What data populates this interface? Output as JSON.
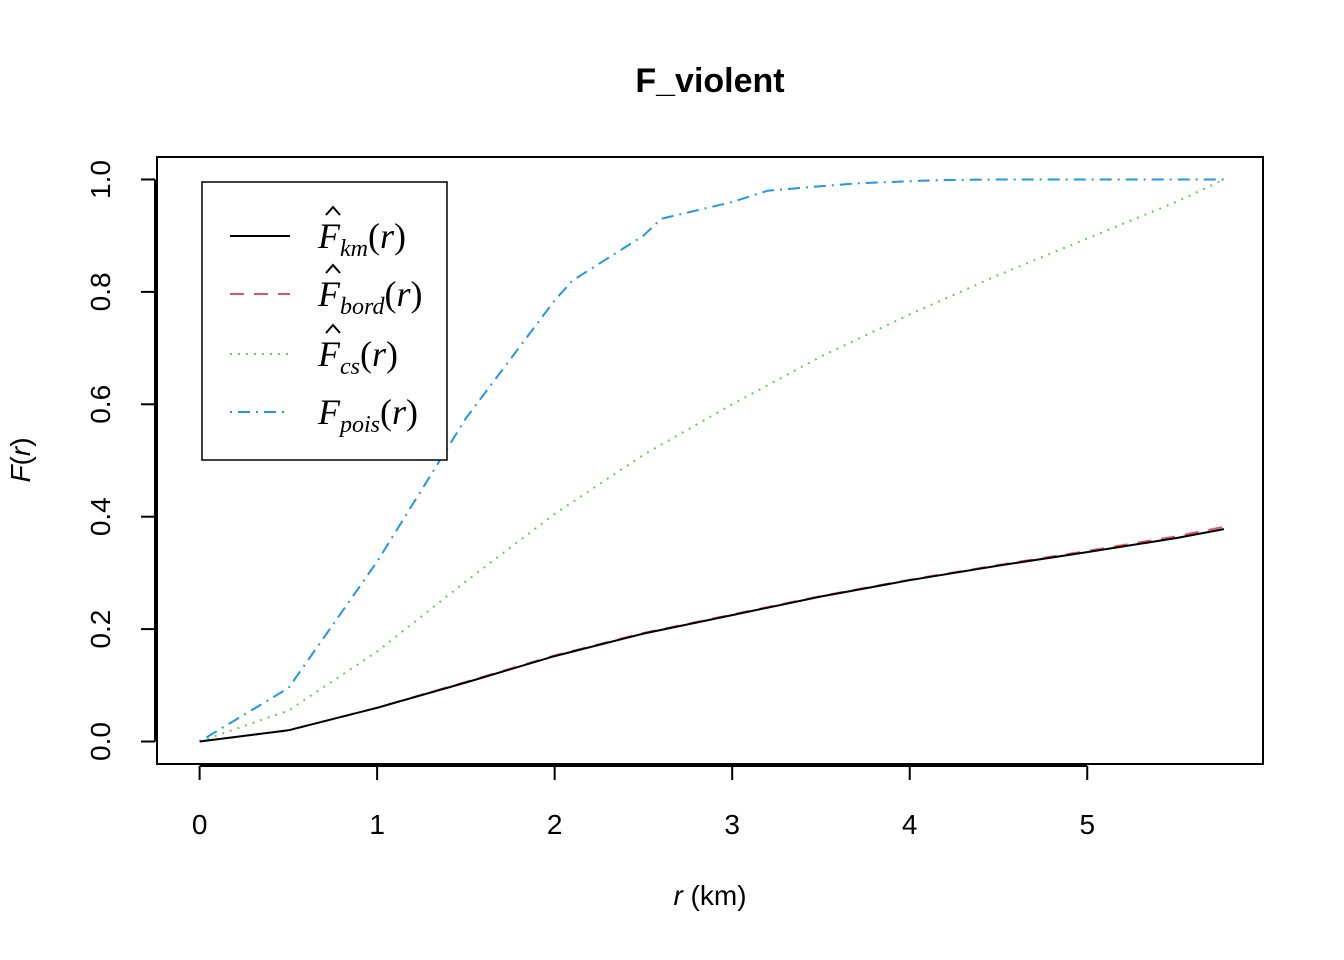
{
  "chart_data": {
    "type": "line",
    "title": "F_violent",
    "xlabel": {
      "var": "r",
      "unit": " (km)"
    },
    "ylabel": {
      "fn": "F",
      "open": "(",
      "var": "r",
      "close": ")"
    },
    "xlim": [
      -0.24,
      5.99
    ],
    "ylim": [
      -0.04,
      1.04
    ],
    "xticks": [
      0,
      1,
      2,
      3,
      4,
      5
    ],
    "xtick_labels": [
      "0",
      "1",
      "2",
      "3",
      "4",
      "5"
    ],
    "yticks": [
      0.0,
      0.2,
      0.4,
      0.6,
      0.8,
      1.0
    ],
    "ytick_labels": [
      "0.0",
      "0.2",
      "0.4",
      "0.6",
      "0.8",
      "1.0"
    ],
    "grid": false,
    "legend_position": "top-left",
    "series": [
      {
        "key": "km",
        "name": "F̂_km(r)",
        "legend": {
          "base": "F",
          "hat": true,
          "sub": "km",
          "open": "(",
          "var": "r",
          "close": ")"
        },
        "color": "#000000",
        "dash": "none",
        "x": [
          0,
          0.5,
          1.0,
          1.5,
          2.0,
          2.5,
          3.0,
          3.5,
          4.0,
          4.5,
          5.0,
          5.5,
          5.77
        ],
        "y": [
          0,
          0.02,
          0.06,
          0.105,
          0.152,
          0.192,
          0.225,
          0.258,
          0.287,
          0.313,
          0.337,
          0.362,
          0.378
        ]
      },
      {
        "key": "bord",
        "name": "F̂_bord(r)",
        "legend": {
          "base": "F",
          "hat": true,
          "sub": "bord",
          "open": "(",
          "var": "r",
          "close": ")"
        },
        "color": "#DF536B",
        "dash": "14,10",
        "x": [
          0,
          0.5,
          1.0,
          1.5,
          2.0,
          2.5,
          3.0,
          3.5,
          4.0,
          4.5,
          5.0,
          5.5,
          5.77
        ],
        "y": [
          0,
          0.02,
          0.06,
          0.106,
          0.153,
          0.193,
          0.226,
          0.259,
          0.288,
          0.314,
          0.339,
          0.365,
          0.382
        ]
      },
      {
        "key": "cs",
        "name": "F̂_cs(r)",
        "legend": {
          "base": "F",
          "hat": true,
          "sub": "cs",
          "open": "(",
          "var": "r",
          "close": ")"
        },
        "color": "#61D04F",
        "dash": "2,6",
        "x": [
          0,
          0.5,
          1.0,
          1.5,
          2.0,
          2.5,
          3.0,
          3.5,
          4.0,
          4.5,
          5.0,
          5.5,
          5.77
        ],
        "y": [
          0,
          0.055,
          0.16,
          0.285,
          0.405,
          0.51,
          0.6,
          0.685,
          0.76,
          0.83,
          0.895,
          0.96,
          1.0
        ]
      },
      {
        "key": "pois",
        "name": "F_pois(r)",
        "legend": {
          "base": "F",
          "hat": false,
          "sub": "pois",
          "open": "(",
          "var": "r",
          "close": ")"
        },
        "color": "#2297E6",
        "dash": "2,6,12,6",
        "x": [
          0,
          0.5,
          1.0,
          1.5,
          2.0,
          2.1,
          2.5,
          2.6,
          3.0,
          3.2,
          3.5,
          3.7,
          4.0,
          4.2,
          4.5,
          5.0,
          5.77
        ],
        "y": [
          0,
          0.095,
          0.32,
          0.575,
          0.785,
          0.82,
          0.9,
          0.93,
          0.96,
          0.98,
          0.988,
          0.993,
          0.997,
          0.999,
          1.0,
          1.0,
          1.0
        ]
      }
    ]
  }
}
